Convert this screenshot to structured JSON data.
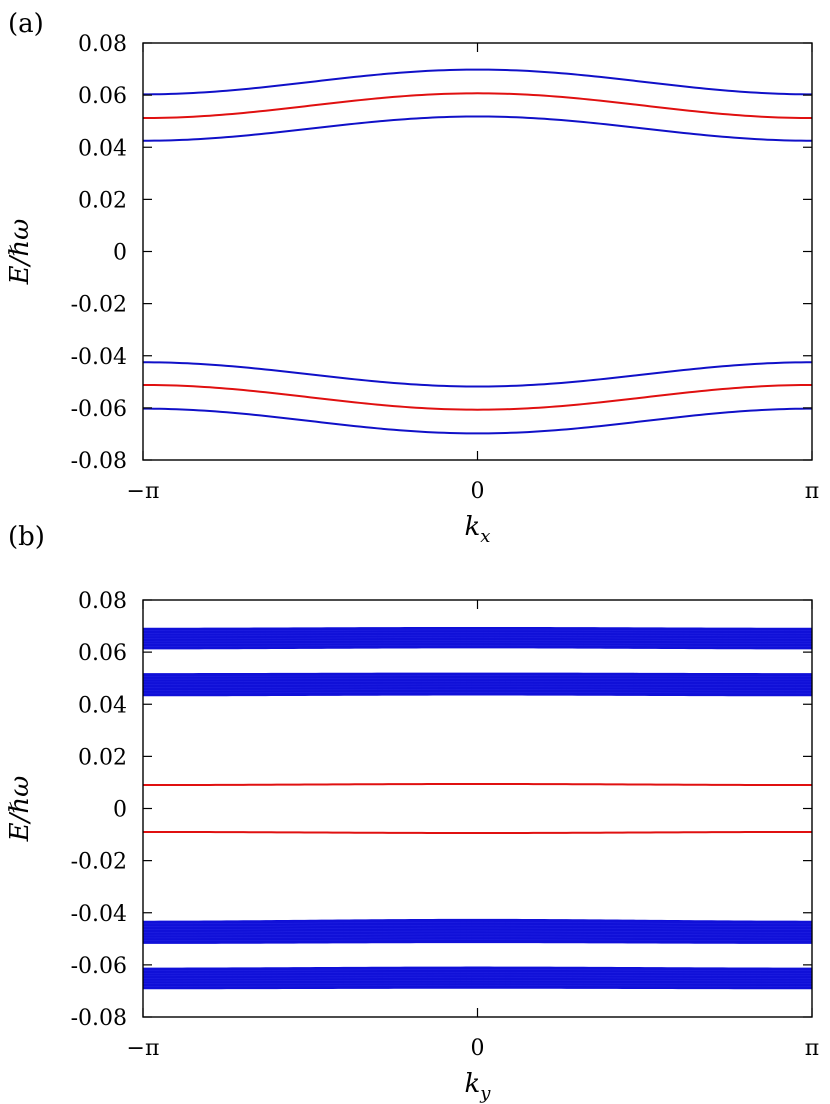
{
  "chart_data": [
    {
      "type": "line",
      "panel_label": "(a)",
      "xlabel": "k",
      "xlabel_sub": "x",
      "ylabel": "E/ℏω",
      "xlim": [
        -3.14159,
        3.14159
      ],
      "ylim": [
        -0.08,
        0.08
      ],
      "xticks": [
        -3.14159,
        0,
        3.14159
      ],
      "xtick_labels": [
        "−π",
        "0",
        "π"
      ],
      "yticks": [
        0.08,
        0.06,
        0.04,
        0.02,
        0,
        -0.02,
        -0.04,
        -0.06,
        -0.08
      ],
      "ytick_labels": [
        "0.08",
        "0.06",
        "0.04",
        "0.02",
        "0",
        "-0.02",
        "-0.04",
        "-0.06",
        "-0.08"
      ],
      "grid": false,
      "series": [
        {
          "color": "#1010c8",
          "edge": 0.0603,
          "center": 0.0698
        },
        {
          "color": "#e01010",
          "edge": 0.0512,
          "center": 0.0607
        },
        {
          "color": "#1010c8",
          "edge": 0.0425,
          "center": 0.0518
        },
        {
          "color": "#1010c8",
          "edge": -0.0425,
          "center": -0.0518
        },
        {
          "color": "#e01010",
          "edge": -0.0512,
          "center": -0.0607
        },
        {
          "color": "#1010c8",
          "edge": -0.0603,
          "center": -0.0698
        }
      ]
    },
    {
      "type": "line",
      "panel_label": "(b)",
      "xlabel": "k",
      "xlabel_sub": "y",
      "ylabel": "E/ℏω",
      "xlim": [
        -3.14159,
        3.14159
      ],
      "ylim": [
        -0.08,
        0.08
      ],
      "xticks": [
        -3.14159,
        0,
        3.14159
      ],
      "xtick_labels": [
        "−π",
        "0",
        "π"
      ],
      "yticks": [
        0.08,
        0.06,
        0.04,
        0.02,
        0,
        -0.02,
        -0.04,
        -0.06,
        -0.08
      ],
      "ytick_labels": [
        "0.08",
        "0.06",
        "0.04",
        "0.02",
        "0",
        "-0.02",
        "-0.04",
        "-0.06",
        "-0.08"
      ],
      "grid": false,
      "bands": [
        {
          "color": "#1010d8",
          "upper_edge": 0.0692,
          "upper_center": 0.0695,
          "lower_edge": 0.0612,
          "lower_center": 0.0616
        },
        {
          "color": "#1010d8",
          "upper_edge": 0.0518,
          "upper_center": 0.052,
          "lower_edge": 0.0432,
          "lower_center": 0.0435
        },
        {
          "color": "#1010d8",
          "upper_edge": -0.0432,
          "upper_center": -0.0425,
          "lower_edge": -0.0518,
          "lower_center": -0.0515
        },
        {
          "color": "#1010d8",
          "upper_edge": -0.0612,
          "upper_center": -0.0608,
          "lower_edge": -0.0692,
          "lower_center": -0.069
        }
      ],
      "series": [
        {
          "color": "#e01010",
          "edge": 0.009,
          "center": 0.0094
        },
        {
          "color": "#e01010",
          "edge": -0.009,
          "center": -0.0094
        }
      ]
    }
  ]
}
